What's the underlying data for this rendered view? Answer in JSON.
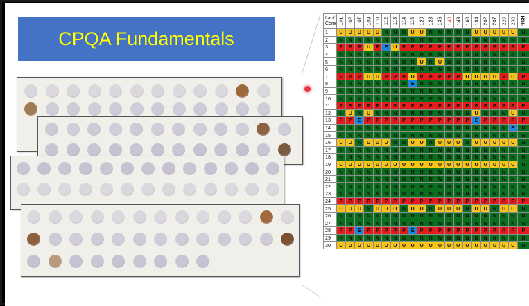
{
  "title": "CPQA Fundamentals",
  "table": {
    "corner_label": [
      "Lab/",
      "Core"
    ],
    "labs": [
      "101",
      "102",
      "107",
      "109",
      "110",
      "112",
      "113",
      "114",
      "115",
      "120",
      "123",
      "136",
      "140",
      "149",
      "160",
      "194",
      "202",
      "207",
      "220",
      "230"
    ],
    "highlight_lab": "140",
    "fish_header": "FISH",
    "rows": [
      {
        "core": "1",
        "cells": "UUUUUNNNUUNNNNNUUUUU",
        "fish": "N"
      },
      {
        "core": "2",
        "cells": "NNNNNNNNNNNNNNNNNNNN",
        "fish": "N"
      },
      {
        "core": "3",
        "cells": "PPPUPEUPPPPPPPPPPPPP",
        "fish": "P"
      },
      {
        "core": "4",
        "cells": "NNNNNNNNNNNNNNNNNNNN",
        "fish": "N"
      },
      {
        "core": "5",
        "cells": "NNNNNNNNNUNUNNNNNNNN",
        "fish": "N"
      },
      {
        "core": "6",
        "cells": "NNNNNNNNNNNNNNNNNNNN",
        "fish": "N"
      },
      {
        "core": "7",
        "cells": "PPPUUPPPUPPPPPUUUUPU",
        "fish": "P"
      },
      {
        "core": "8",
        "cells": "NNNNNNNNENNNNNNNNNNN",
        "fish": "N"
      },
      {
        "core": "9",
        "cells": "NNNNNNNNNNNNNNNNNNNN",
        "fish": "N"
      },
      {
        "core": "10",
        "cells": "NNNNNNNNNNNNNNNNNNNN",
        "fish": "N"
      },
      {
        "core": "11",
        "cells": "PPPPPPPPPPPPPPPPPPPP",
        "fish": "P"
      },
      {
        "core": "12",
        "cells": "NUNUNNNNNNNNNNNUNNNU",
        "fish": "N"
      },
      {
        "core": "13",
        "cells": "PPEPPPPPPPPPPPPEPPPP",
        "fish": "P"
      },
      {
        "core": "14",
        "cells": "NNNNNNNNNNNNNNNNNNNE",
        "fish": "N"
      },
      {
        "core": "15",
        "cells": "NNNNNNNNNNNNNNNNNNNN",
        "fish": "N"
      },
      {
        "core": "16",
        "cells": "UUNUUUNNUUNUUUNUUUUU",
        "fish": "N"
      },
      {
        "core": "17",
        "cells": "NNNNNNNNNNNNNNNNNNNN",
        "fish": "N"
      },
      {
        "core": "18",
        "cells": "NNNNNNNNNNNNNNNNNNNN",
        "fish": "N"
      },
      {
        "core": "19",
        "cells": "UUUUUUUUUUUUUUUUUUUU",
        "fish": "N"
      },
      {
        "core": "20",
        "cells": "NNNNNNNNNNNNNNNNNNNN",
        "fish": "N"
      },
      {
        "core": "21",
        "cells": "NNNNNNNNNNNNNNNNNNNN",
        "fish": "N"
      },
      {
        "core": "22",
        "cells": "NNNNNNNNNNNNNNNNNNNN",
        "fish": "N"
      },
      {
        "core": "23",
        "cells": "NNNNNNNNNNNNNNNNNNNN",
        "fish": "N"
      },
      {
        "core": "24",
        "cells": "PPPPPPPPPPPPPPPPPPPP",
        "fish": "P"
      },
      {
        "core": "25",
        "cells": "UUUNUUUNUUNUUUNUUNUU",
        "fish": "N"
      },
      {
        "core": "26",
        "cells": "NNNNNNNNNNNNNNNNNNNN",
        "fish": "N"
      },
      {
        "core": "27",
        "cells": "NNNNNNNNNNNNNNNNNNNN",
        "fish": "N"
      },
      {
        "core": "28",
        "cells": "PPEPPPPPEPPPPPPPPPPP",
        "fish": "P"
      },
      {
        "core": "29",
        "cells": "NNNNNNNNNNNNNNNNNNNN",
        "fish": "N"
      },
      {
        "core": "30",
        "cells": "UUUUUUUUUUUUUUUUUUUU",
        "fish": "N"
      }
    ]
  },
  "colors": {
    "banner": "#4472c4",
    "title_text": "#ffff00",
    "negative": "#0b6e1e",
    "uncertain": "#f7c51a",
    "positive": "#e51c1c",
    "equivocal": "#1a86e0"
  }
}
